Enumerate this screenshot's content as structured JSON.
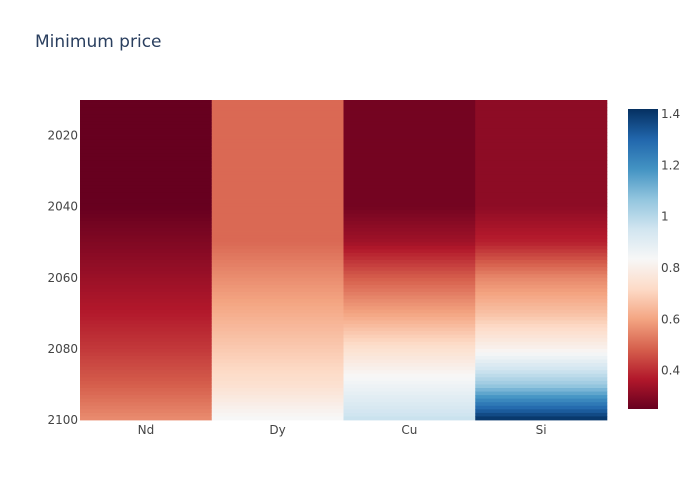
{
  "chart_data": {
    "type": "heatmap",
    "title": "Minimum price",
    "xlabel": "",
    "ylabel": "",
    "categories": [
      "Nd",
      "Dy",
      "Cu",
      "Si"
    ],
    "y_range": [
      2010,
      2100
    ],
    "y_ticks": [
      2020,
      2040,
      2060,
      2080,
      2100
    ],
    "x_tick_labels": [
      "Nd",
      "Dy",
      "Cu",
      "Si"
    ],
    "y_tick_labels": [
      "2020",
      "2040",
      "2060",
      "2080",
      "2100"
    ],
    "colorbar": {
      "range": [
        0.25,
        1.42
      ],
      "ticks": [
        0.4,
        0.6,
        0.8,
        1.0,
        1.2,
        1.4
      ],
      "tick_labels": [
        "0.4",
        "0.6",
        "0.8",
        "1",
        "1.2",
        "1.4"
      ],
      "colorscale": "RdBu"
    },
    "series": [
      {
        "values_keyframes": [
          [
            2010,
            0.25
          ],
          [
            2040,
            0.25
          ],
          [
            2050,
            0.29
          ],
          [
            2060,
            0.33
          ],
          [
            2070,
            0.37
          ],
          [
            2080,
            0.42
          ],
          [
            2090,
            0.48
          ],
          [
            2100,
            0.56
          ]
        ]
      },
      {
        "values_keyframes": [
          [
            2010,
            0.5
          ],
          [
            2050,
            0.5
          ],
          [
            2060,
            0.56
          ],
          [
            2070,
            0.62
          ],
          [
            2080,
            0.68
          ],
          [
            2090,
            0.74
          ],
          [
            2100,
            0.84
          ]
        ]
      },
      {
        "values_keyframes": [
          [
            2010,
            0.27
          ],
          [
            2040,
            0.27
          ],
          [
            2050,
            0.34
          ],
          [
            2060,
            0.48
          ],
          [
            2070,
            0.6
          ],
          [
            2080,
            0.74
          ],
          [
            2090,
            0.86
          ],
          [
            2100,
            0.97
          ]
        ]
      },
      {
        "values_keyframes": [
          [
            2010,
            0.31
          ],
          [
            2040,
            0.31
          ],
          [
            2050,
            0.38
          ],
          [
            2060,
            0.55
          ],
          [
            2070,
            0.66
          ],
          [
            2080,
            0.81
          ],
          [
            2090,
            1.05
          ],
          [
            2100,
            1.42
          ]
        ]
      }
    ]
  }
}
